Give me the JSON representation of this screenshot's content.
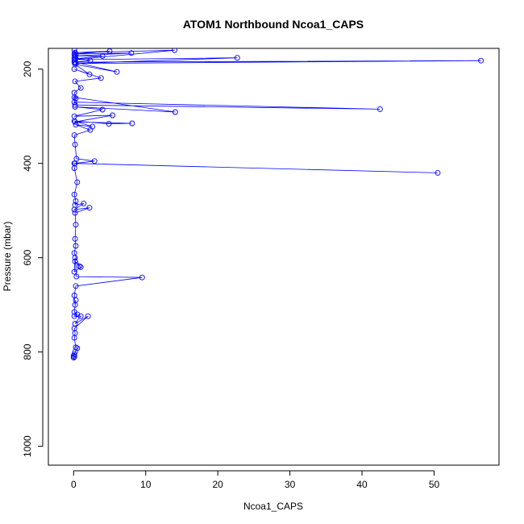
{
  "chart_data": {
    "type": "line",
    "title": "ATOM1 Northbound Ncoa1_CAPS",
    "xlabel": "Ncoa1_CAPS",
    "ylabel": "Pressure (mbar)",
    "xlim": [
      -3.5,
      59.0
    ],
    "ylim": [
      1040,
      156
    ],
    "y_reversed": true,
    "xticks": [
      0,
      10,
      20,
      30,
      40,
      50
    ],
    "xtick_labels": [
      "0",
      "10",
      "20",
      "30",
      "40",
      "50"
    ],
    "yticks": [
      200,
      400,
      600,
      800,
      1000
    ],
    "ytick_labels": [
      "200",
      "400",
      "600",
      "800",
      "1000"
    ],
    "grid": false,
    "colors": {
      "series": "#0000ff",
      "axis": "#000000"
    },
    "marker": "open-circle",
    "series": [
      {
        "x": [
          0.1,
          0.2,
          0.3,
          0.1,
          2.3,
          0.2,
          56.5,
          0.3,
          22.7,
          0.1,
          14.0,
          0.2,
          5.0,
          0.1,
          8.0,
          0.2,
          4.0,
          0.3,
          0.1,
          6.0,
          0.2,
          2.2,
          0.1,
          3.8,
          0.2,
          1.0,
          0.1,
          0.3,
          0.1,
          42.5,
          0.2,
          0.1,
          14.1,
          0.2,
          4.0,
          0.1,
          5.4,
          0.2,
          8.1,
          4.9,
          0.1,
          2.6,
          0.3,
          2.3,
          0.1,
          0.2,
          0.4,
          2.9,
          0.2,
          50.5,
          0.1,
          0.1,
          0.5,
          0.1,
          0.3,
          0.2,
          1.4,
          0.1,
          2.2,
          0.2,
          0.3,
          0.2,
          0.3,
          0.1,
          0.8,
          0.2,
          1.0,
          0.1,
          0.2,
          0.4,
          9.5,
          0.3,
          0.1,
          0.2,
          0.3,
          0.1,
          0.5,
          0.1,
          1.0,
          0.2,
          2.0,
          0.1,
          0.2,
          0.1,
          0.3,
          0.5,
          0.2,
          0.1,
          0.0,
          0.1,
          0.0
        ],
        "y": [
          160,
          165,
          170,
          175,
          182,
          185,
          182,
          188,
          176,
          180,
          160,
          165,
          162,
          168,
          166,
          172,
          172,
          178,
          185,
          206,
          190,
          211,
          200,
          219,
          226,
          240,
          250,
          262,
          270,
          285,
          276,
          260,
          291,
          280,
          286,
          300,
          298,
          312,
          315,
          316,
          310,
          322,
          318,
          329,
          340,
          360,
          390,
          395,
          400,
          420,
          400,
          410,
          440,
          466,
          480,
          488,
          485,
          498,
          494,
          505,
          530,
          560,
          575,
          590,
          618,
          608,
          620,
          630,
          600,
          640,
          642,
          660,
          680,
          700,
          690,
          715,
          720,
          724,
          724,
          740,
          724,
          750,
          760,
          770,
          790,
          792,
          800,
          805,
          808,
          810,
          812
        ]
      }
    ]
  }
}
